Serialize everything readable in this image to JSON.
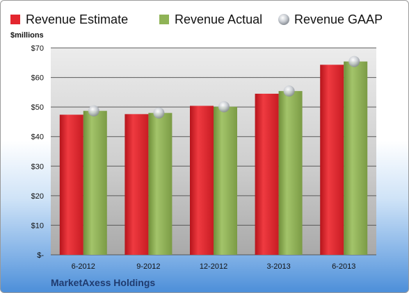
{
  "chart_data": {
    "type": "bar",
    "unit_label": "$millions",
    "company": "MarketAxess Holdings",
    "categories": [
      "6-2012",
      "9-2012",
      "12-2012",
      "3-2013",
      "6-2013"
    ],
    "y_ticks": [
      "$-",
      "$10",
      "$20",
      "$30",
      "$40",
      "$50",
      "$60",
      "$70"
    ],
    "ylim": [
      0,
      70
    ],
    "grid": true,
    "legend_position": "top",
    "series": [
      {
        "name": "Revenue Estimate",
        "kind": "bar",
        "color": "#e3262e",
        "values": [
          47.4,
          47.6,
          50.4,
          54.5,
          64.3
        ]
      },
      {
        "name": "Revenue Actual",
        "kind": "bar",
        "color": "#8fb356",
        "values": [
          48.7,
          48.0,
          50.1,
          55.4,
          65.4
        ]
      },
      {
        "name": "Revenue GAAP",
        "kind": "marker",
        "color": "#c4c9d0",
        "values": [
          48.7,
          48.0,
          50.1,
          55.4,
          65.4
        ]
      }
    ]
  }
}
